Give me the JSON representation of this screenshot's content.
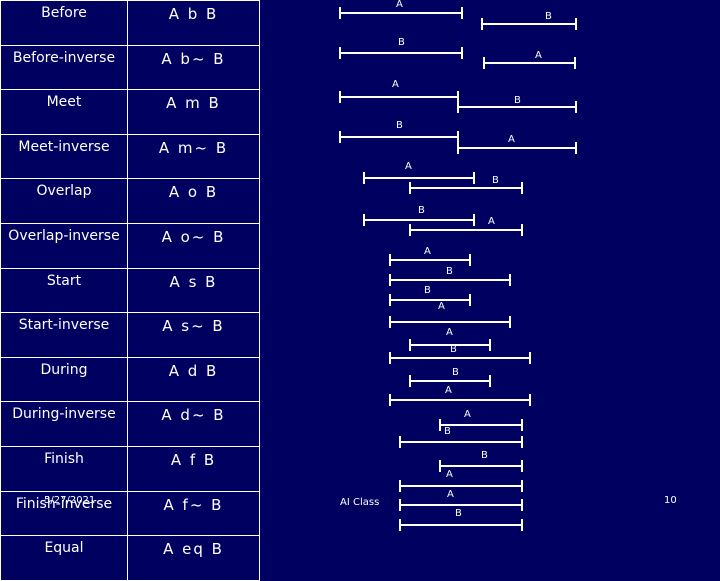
{
  "relations": [
    {
      "name": "Before",
      "notation": "A b B",
      "a_label": "A",
      "b_label": "B"
    },
    {
      "name": "Before-inverse",
      "notation": "A b~ B",
      "a_label": "A",
      "b_label": "B"
    },
    {
      "name": "Meet",
      "notation": "A m B",
      "a_label": "A",
      "b_label": "B"
    },
    {
      "name": "Meet-inverse",
      "notation": "A m~ B",
      "a_label": "A",
      "b_label": "B"
    },
    {
      "name": "Overlap",
      "notation": "A o B",
      "a_label": "A",
      "b_label": "B"
    },
    {
      "name": "Overlap-inverse",
      "notation": "A o~ B",
      "a_label": "A",
      "b_label": "B"
    },
    {
      "name": "Start",
      "notation": "A s B",
      "a_label": "A",
      "b_label": "B"
    },
    {
      "name": "Start-inverse",
      "notation": "A s~ B",
      "a_label": "A",
      "b_label": "B"
    },
    {
      "name": "During",
      "notation": "A d B",
      "a_label": "A",
      "b_label": "B"
    },
    {
      "name": "During-inverse",
      "notation": "A d~ B",
      "a_label": "A",
      "b_label": "B"
    },
    {
      "name": "Finish",
      "notation": "A f B",
      "a_label": "A",
      "b_label": "B"
    },
    {
      "name": "Finish-inverse",
      "notation": "A f~ B",
      "a_label": "A",
      "b_label": "B"
    },
    {
      "name": "Equal",
      "notation": "A eq B",
      "a_label": "A",
      "b_label": "B"
    }
  ],
  "footer": {
    "date": "5/27/2021",
    "course": "AI Class",
    "page": "10"
  },
  "colors": {
    "background": "#000060",
    "foreground": "#ffffff"
  }
}
